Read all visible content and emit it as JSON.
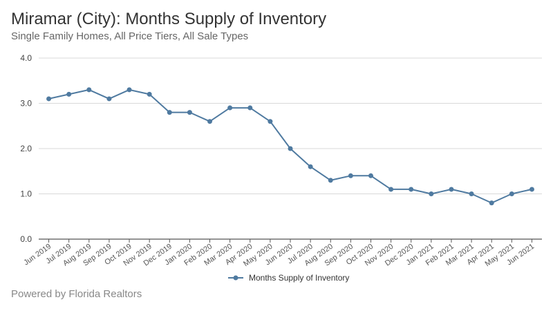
{
  "header": {
    "title": "Miramar (City): Months Supply of Inventory",
    "subtitle": "Single Family Homes, All Price Tiers, All Sale Types"
  },
  "footer": {
    "credit": "Powered by Florida Realtors"
  },
  "colors": {
    "series": "#4f7aa0",
    "grid": "#d8d8d8",
    "axis": "#555555"
  },
  "chart_data": {
    "type": "line",
    "title": "Miramar (City): Months Supply of Inventory",
    "subtitle": "Single Family Homes, All Price Tiers, All Sale Types",
    "xlabel": "",
    "ylabel": "",
    "ylim": [
      0,
      4
    ],
    "yticks": [
      "0.0",
      "1.0",
      "2.0",
      "3.0",
      "4.0"
    ],
    "grid": true,
    "legend_position": "bottom",
    "categories": [
      "Jun 2019",
      "Jul 2019",
      "Aug 2019",
      "Sep 2019",
      "Oct 2019",
      "Nov 2019",
      "Dec 2019",
      "Jan 2020",
      "Feb 2020",
      "Mar 2020",
      "Apr 2020",
      "May 2020",
      "Jun 2020",
      "Jul 2020",
      "Aug 2020",
      "Sep 2020",
      "Oct 2020",
      "Nov 2020",
      "Dec 2020",
      "Jan 2021",
      "Feb 2021",
      "Mar 2021",
      "Apr 2021",
      "May 2021",
      "Jun 2021"
    ],
    "series": [
      {
        "name": "Months Supply of Inventory",
        "color": "#4f7aa0",
        "values": [
          3.1,
          3.2,
          3.3,
          3.1,
          3.3,
          3.2,
          2.8,
          2.8,
          2.6,
          2.9,
          2.9,
          2.6,
          2.0,
          1.6,
          1.3,
          1.4,
          1.4,
          1.1,
          1.1,
          1.0,
          1.1,
          1.0,
          0.8,
          1.0,
          1.1
        ]
      }
    ]
  }
}
